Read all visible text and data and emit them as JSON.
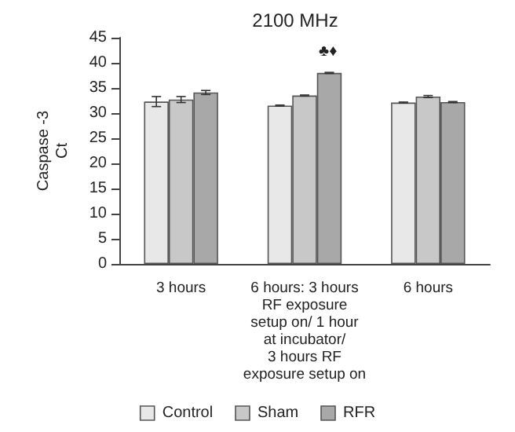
{
  "chart_data": {
    "type": "bar",
    "title": "2100 MHz",
    "ylabel": "Caspase -3\nCt",
    "categories": [
      "3 hours",
      "6 hours: 3 hours\nRF exposure\nsetup on/ 1 hour\nat incubator/\n3 hours RF\nexposure setup on",
      "6 hours"
    ],
    "series": [
      {
        "name": "Control",
        "color": "#e8e8e8",
        "values": [
          32.3,
          31.5,
          32.1
        ],
        "errors": [
          1.0,
          0.1,
          0.1
        ]
      },
      {
        "name": "Sham",
        "color": "#c8c8c8",
        "values": [
          32.7,
          33.5,
          33.3
        ],
        "errors": [
          0.6,
          0.1,
          0.2
        ]
      },
      {
        "name": "RFR",
        "color": "#a8a8a8",
        "values": [
          34.1,
          38.0,
          32.2
        ],
        "errors": [
          0.4,
          0.1,
          0.1
        ]
      }
    ],
    "annotations": [
      "♣♦"
    ],
    "ylim": [
      0,
      45
    ],
    "yticks": [
      0,
      5,
      10,
      15,
      20,
      25,
      30,
      35,
      40,
      45
    ],
    "grid": false,
    "legend": "bottom"
  }
}
